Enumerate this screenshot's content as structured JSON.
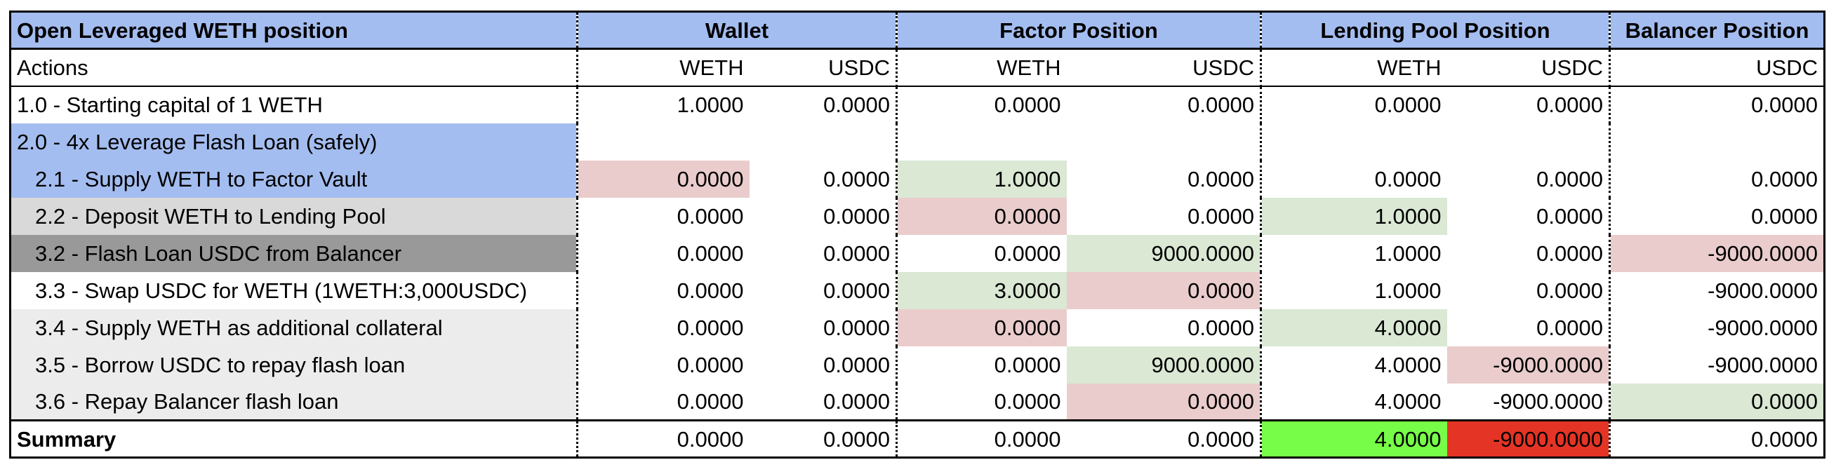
{
  "header": {
    "title": "Open Leveraged WETH position",
    "groups": [
      "Wallet",
      "Factor Position",
      "Lending Pool Position",
      "Balancer Position"
    ]
  },
  "subheader": {
    "actions_label": "Actions",
    "columns": [
      "WETH",
      "USDC",
      "WETH",
      "USDC",
      "WETH",
      "USDC",
      "USDC"
    ]
  },
  "rows": [
    {
      "label": "1.0 - Starting capital of 1 WETH",
      "values": [
        "1.0000",
        "0.0000",
        "0.0000",
        "0.0000",
        "0.0000",
        "0.0000",
        "0.0000"
      ]
    },
    {
      "label": "2.0 - 4x Leverage Flash Loan (safely)",
      "values": [
        "",
        "",
        "",
        "",
        "",
        "",
        ""
      ]
    },
    {
      "label": "2.1 - Supply WETH to Factor Vault",
      "values": [
        "0.0000",
        "0.0000",
        "1.0000",
        "0.0000",
        "0.0000",
        "0.0000",
        "0.0000"
      ]
    },
    {
      "label": "2.2 - Deposit WETH to Lending Pool",
      "values": [
        "0.0000",
        "0.0000",
        "0.0000",
        "0.0000",
        "1.0000",
        "0.0000",
        "0.0000"
      ]
    },
    {
      "label": "3.2 - Flash Loan USDC from Balancer",
      "values": [
        "0.0000",
        "0.0000",
        "0.0000",
        "9000.0000",
        "1.0000",
        "0.0000",
        "-9000.0000"
      ]
    },
    {
      "label": "3.3 - Swap USDC for WETH (1WETH:3,000USDC)",
      "values": [
        "0.0000",
        "0.0000",
        "3.0000",
        "0.0000",
        "1.0000",
        "0.0000",
        "-9000.0000"
      ]
    },
    {
      "label": "3.4 - Supply WETH as additional collateral",
      "values": [
        "0.0000",
        "0.0000",
        "0.0000",
        "0.0000",
        "4.0000",
        "0.0000",
        "-9000.0000"
      ]
    },
    {
      "label": "3.5 - Borrow USDC to repay flash loan",
      "values": [
        "0.0000",
        "0.0000",
        "0.0000",
        "9000.0000",
        "4.0000",
        "-9000.0000",
        "-9000.0000"
      ]
    },
    {
      "label": "3.6 - Repay Balancer flash loan",
      "values": [
        "0.0000",
        "0.0000",
        "0.0000",
        "0.0000",
        "4.0000",
        "-9000.0000",
        "0.0000"
      ]
    }
  ],
  "summary": {
    "label": "Summary",
    "values": [
      "0.0000",
      "0.0000",
      "0.0000",
      "0.0000",
      "4.0000",
      "-9000.0000",
      "0.0000"
    ]
  },
  "colors": {
    "header_blue": "#a4bdf0",
    "highlight_red": "#eacccc",
    "highlight_green": "#dae8d4",
    "summary_green": "#77fc48",
    "summary_red": "#e43425"
  }
}
